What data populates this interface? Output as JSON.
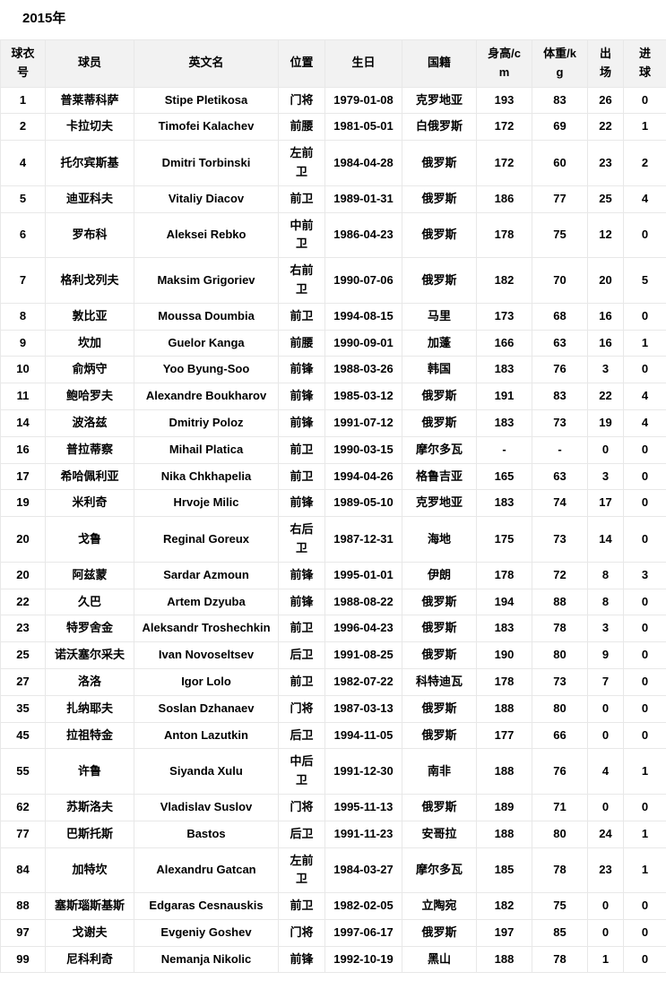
{
  "title": "2015年",
  "colors": {
    "header_bg": "#f2f2f2",
    "border": "#e8e8e8",
    "text": "#000000",
    "page_bg": "#ffffff"
  },
  "table": {
    "columns": [
      "球衣\n号",
      "球员",
      "英文名",
      "位置",
      "生日",
      "国籍",
      "身高/c\nm",
      "体重/k\ng",
      "出\n场",
      "进\n球"
    ],
    "rows": [
      [
        "1",
        "普莱蒂科萨",
        "Stipe Pletikosa",
        "门将",
        "1979-01-08",
        "克罗地亚",
        "193",
        "83",
        "26",
        "0"
      ],
      [
        "2",
        "卡拉切夫",
        "Timofei Kalachev",
        "前腰",
        "1981-05-01",
        "白俄罗斯",
        "172",
        "69",
        "22",
        "1"
      ],
      [
        "4",
        "托尔宾斯基",
        "Dmitri Torbinski",
        "左前\n卫",
        "1984-04-28",
        "俄罗斯",
        "172",
        "60",
        "23",
        "2"
      ],
      [
        "5",
        "迪亚科夫",
        "Vitaliy Diacov",
        "前卫",
        "1989-01-31",
        "俄罗斯",
        "186",
        "77",
        "25",
        "4"
      ],
      [
        "6",
        "罗布科",
        "Aleksei Rebko",
        "中前\n卫",
        "1986-04-23",
        "俄罗斯",
        "178",
        "75",
        "12",
        "0"
      ],
      [
        "7",
        "格利戈列夫",
        "Maksim Grigoriev",
        "右前\n卫",
        "1990-07-06",
        "俄罗斯",
        "182",
        "70",
        "20",
        "5"
      ],
      [
        "8",
        "敦比亚",
        "Moussa Doumbia",
        "前卫",
        "1994-08-15",
        "马里",
        "173",
        "68",
        "16",
        "0"
      ],
      [
        "9",
        "坎加",
        "Guelor Kanga",
        "前腰",
        "1990-09-01",
        "加蓬",
        "166",
        "63",
        "16",
        "1"
      ],
      [
        "10",
        "俞炳守",
        "Yoo Byung-Soo",
        "前锋",
        "1988-03-26",
        "韩国",
        "183",
        "76",
        "3",
        "0"
      ],
      [
        "11",
        "鲍哈罗夫",
        "Alexandre Boukharov",
        "前锋",
        "1985-03-12",
        "俄罗斯",
        "191",
        "83",
        "22",
        "4"
      ],
      [
        "14",
        "波洛兹",
        "Dmitriy Poloz",
        "前锋",
        "1991-07-12",
        "俄罗斯",
        "183",
        "73",
        "19",
        "4"
      ],
      [
        "16",
        "普拉蒂察",
        "Mihail Platica",
        "前卫",
        "1990-03-15",
        "摩尔多瓦",
        "-",
        "-",
        "0",
        "0"
      ],
      [
        "17",
        "希哈佩利亚",
        "Nika Chkhapelia",
        "前卫",
        "1994-04-26",
        "格鲁吉亚",
        "165",
        "63",
        "3",
        "0"
      ],
      [
        "19",
        "米利奇",
        "Hrvoje Milic",
        "前锋",
        "1989-05-10",
        "克罗地亚",
        "183",
        "74",
        "17",
        "0"
      ],
      [
        "20",
        "戈鲁",
        "Reginal Goreux",
        "右后\n卫",
        "1987-12-31",
        "海地",
        "175",
        "73",
        "14",
        "0"
      ],
      [
        "20",
        "阿兹蒙",
        "Sardar Azmoun",
        "前锋",
        "1995-01-01",
        "伊朗",
        "178",
        "72",
        "8",
        "3"
      ],
      [
        "22",
        "久巴",
        "Artem Dzyuba",
        "前锋",
        "1988-08-22",
        "俄罗斯",
        "194",
        "88",
        "8",
        "0"
      ],
      [
        "23",
        "特罗舍金",
        "Aleksandr Troshechkin",
        "前卫",
        "1996-04-23",
        "俄罗斯",
        "183",
        "78",
        "3",
        "0"
      ],
      [
        "25",
        "诺沃塞尔采夫",
        "Ivan Novoseltsev",
        "后卫",
        "1991-08-25",
        "俄罗斯",
        "190",
        "80",
        "9",
        "0"
      ],
      [
        "27",
        "洛洛",
        "Igor Lolo",
        "前卫",
        "1982-07-22",
        "科特迪瓦",
        "178",
        "73",
        "7",
        "0"
      ],
      [
        "35",
        "扎纳耶夫",
        "Soslan Dzhanaev",
        "门将",
        "1987-03-13",
        "俄罗斯",
        "188",
        "80",
        "0",
        "0"
      ],
      [
        "45",
        "拉祖特金",
        "Anton Lazutkin",
        "后卫",
        "1994-11-05",
        "俄罗斯",
        "177",
        "66",
        "0",
        "0"
      ],
      [
        "55",
        "许鲁",
        "Siyanda Xulu",
        "中后\n卫",
        "1991-12-30",
        "南非",
        "188",
        "76",
        "4",
        "1"
      ],
      [
        "62",
        "苏斯洛夫",
        "Vladislav Suslov",
        "门将",
        "1995-11-13",
        "俄罗斯",
        "189",
        "71",
        "0",
        "0"
      ],
      [
        "77",
        "巴斯托斯",
        "Bastos",
        "后卫",
        "1991-11-23",
        "安哥拉",
        "188",
        "80",
        "24",
        "1"
      ],
      [
        "84",
        "加特坎",
        "Alexandru Gatcan",
        "左前\n卫",
        "1984-03-27",
        "摩尔多瓦",
        "185",
        "78",
        "23",
        "1"
      ],
      [
        "88",
        "塞斯瑙斯基斯",
        "Edgaras Cesnauskis",
        "前卫",
        "1982-02-05",
        "立陶宛",
        "182",
        "75",
        "0",
        "0"
      ],
      [
        "97",
        "戈谢夫",
        "Evgeniy Goshev",
        "门将",
        "1997-06-17",
        "俄罗斯",
        "197",
        "85",
        "0",
        "0"
      ],
      [
        "99",
        "尼科利奇",
        "Nemanja Nikolic",
        "前锋",
        "1992-10-19",
        "黑山",
        "188",
        "78",
        "1",
        "0"
      ]
    ]
  }
}
